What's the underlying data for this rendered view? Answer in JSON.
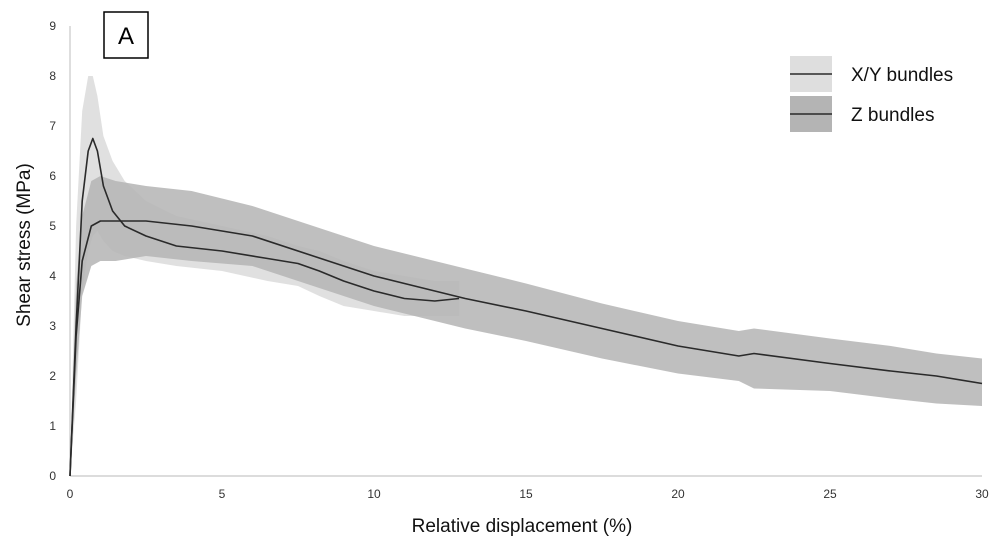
{
  "chart_data": {
    "type": "line",
    "panel_label": "A",
    "xlabel": "Relative displacement (%)",
    "ylabel": "Shear stress (MPa)",
    "xlim": [
      0,
      30
    ],
    "ylim": [
      0,
      9
    ],
    "x_ticks": [
      0,
      5,
      10,
      15,
      20,
      25,
      30
    ],
    "y_ticks": [
      0,
      1,
      2,
      3,
      4,
      5,
      6,
      7,
      8,
      9
    ],
    "grid": false,
    "legend_position": "top-right",
    "series": [
      {
        "name": "X/Y bundles",
        "line_color": "#2a2a2a",
        "band_color": "#dedede",
        "x": [
          0,
          0.2,
          0.4,
          0.6,
          0.75,
          0.9,
          1.1,
          1.4,
          1.8,
          2.5,
          3.5,
          5,
          6.5,
          7.5,
          8.2,
          9,
          10,
          11,
          12,
          12.8
        ],
        "y": [
          0,
          3.0,
          5.5,
          6.5,
          6.75,
          6.5,
          5.8,
          5.3,
          5.0,
          4.8,
          4.6,
          4.5,
          4.35,
          4.25,
          4.1,
          3.9,
          3.7,
          3.55,
          3.5,
          3.55
        ],
        "upper": [
          0,
          5.0,
          7.3,
          8.0,
          8.0,
          7.6,
          6.8,
          6.3,
          5.9,
          5.5,
          5.2,
          5.0,
          4.8,
          4.6,
          4.5,
          4.3,
          4.1,
          4.0,
          3.9,
          3.9
        ],
        "lower": [
          0,
          1.5,
          3.7,
          4.5,
          4.8,
          4.9,
          4.7,
          4.5,
          4.4,
          4.3,
          4.2,
          4.1,
          3.9,
          3.8,
          3.6,
          3.4,
          3.3,
          3.2,
          3.2,
          3.2
        ]
      },
      {
        "name": "Z bundles",
        "line_color": "#2a2a2a",
        "band_color": "#b4b4b4",
        "x": [
          0,
          0.2,
          0.4,
          0.7,
          1.0,
          1.5,
          2.5,
          4,
          6,
          8,
          10,
          12,
          13,
          15,
          17.5,
          20,
          22,
          22.5,
          25,
          27,
          28.5,
          30
        ],
        "y": [
          0,
          2.8,
          4.3,
          5.0,
          5.1,
          5.1,
          5.1,
          5.0,
          4.8,
          4.4,
          4.0,
          3.7,
          3.55,
          3.3,
          2.95,
          2.6,
          2.4,
          2.45,
          2.25,
          2.1,
          2.0,
          1.85
        ],
        "upper": [
          0,
          3.8,
          5.2,
          5.9,
          6.0,
          5.9,
          5.8,
          5.7,
          5.4,
          5.0,
          4.6,
          4.3,
          4.15,
          3.85,
          3.45,
          3.1,
          2.9,
          2.95,
          2.75,
          2.6,
          2.45,
          2.35
        ],
        "lower": [
          0,
          2.0,
          3.6,
          4.2,
          4.3,
          4.3,
          4.4,
          4.3,
          4.2,
          3.8,
          3.4,
          3.1,
          2.95,
          2.7,
          2.35,
          2.05,
          1.9,
          1.75,
          1.7,
          1.55,
          1.45,
          1.4
        ]
      }
    ]
  }
}
